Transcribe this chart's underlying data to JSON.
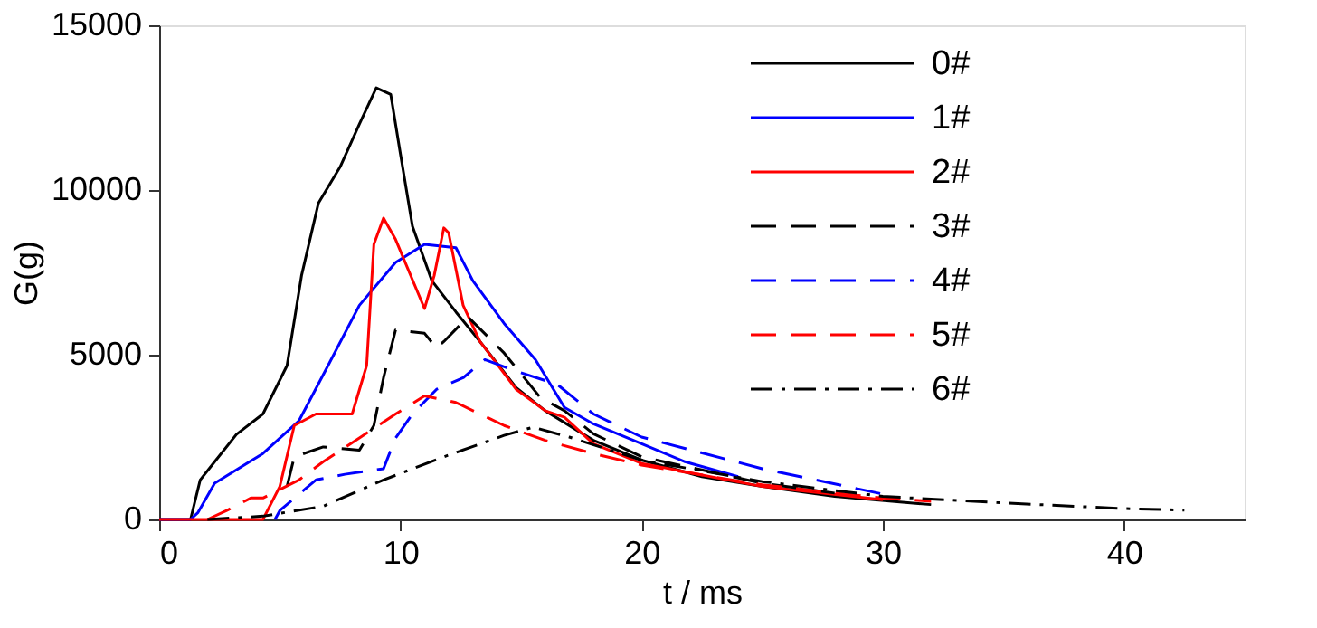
{
  "chart_data": {
    "type": "line",
    "xlabel": "t / ms",
    "ylabel": "G(g)",
    "xlim": [
      0,
      45
    ],
    "ylim": [
      0,
      15000
    ],
    "xticks": [
      0,
      10,
      20,
      30,
      40
    ],
    "yticks": [
      0,
      5000,
      10000,
      15000
    ],
    "grid": false,
    "legend": "top right",
    "series": [
      {
        "name": "0#",
        "color": "#000000",
        "line_style": "solid",
        "x": [
          0,
          1.3,
          1.7,
          2.3,
          3.2,
          4.3,
          5.3,
          5.9,
          6.6,
          7.5,
          8.3,
          9.0,
          9.6,
          10.0,
          10.5,
          11.3,
          12.3,
          13.3,
          14.8,
          16,
          18,
          20,
          22.5,
          25,
          28,
          32
        ],
        "values": [
          0,
          0,
          1200,
          1750,
          2580,
          3200,
          4670,
          7400,
          9600,
          10700,
          12000,
          13100,
          12900,
          11100,
          8900,
          7250,
          6300,
          5400,
          4000,
          3300,
          2400,
          1800,
          1300,
          1000,
          700,
          450
        ]
      },
      {
        "name": "1#",
        "color": "#0000ff",
        "line_style": "solid",
        "x": [
          0,
          1.3,
          1.6,
          2.3,
          4.3,
          5.8,
          7.0,
          8.3,
          9.8,
          11,
          12.3,
          13,
          14.3,
          15.6,
          16.8,
          18,
          20,
          21.8,
          24
        ],
        "values": [
          0,
          0,
          200,
          1100,
          2000,
          3000,
          4670,
          6500,
          7800,
          8350,
          8250,
          7250,
          5950,
          4850,
          3400,
          2900,
          2300,
          1750,
          1300
        ]
      },
      {
        "name": "2#",
        "color": "#ff0000",
        "line_style": "solid",
        "x": [
          0,
          4.3,
          5.0,
          5.6,
          6.5,
          8.0,
          8.6,
          8.9,
          9.3,
          9.8,
          11.0,
          11.4,
          11.8,
          12.0,
          12.6,
          13.3,
          14.8,
          16.0,
          16.8,
          18,
          20,
          25,
          30
        ],
        "values": [
          0,
          0,
          1000,
          2850,
          3200,
          3200,
          4670,
          8350,
          9150,
          8500,
          6400,
          7400,
          8850,
          8700,
          6500,
          5400,
          3950,
          3300,
          3100,
          2300,
          1700,
          1000,
          600
        ]
      },
      {
        "name": "3#",
        "color": "#000000",
        "line_style": "dashed",
        "x": [
          5.3,
          5.6,
          6.8,
          8.3,
          8.9,
          9.3,
          9.8,
          11,
          11.5,
          11.8,
          12.8,
          14.3,
          15.8,
          16.8,
          18,
          20,
          25,
          28
        ],
        "values": [
          1000,
          1900,
          2200,
          2100,
          2850,
          4300,
          5750,
          5650,
          5200,
          5400,
          6150,
          5050,
          3700,
          3300,
          2600,
          1900,
          1100,
          800
        ]
      },
      {
        "name": "4#",
        "color": "#0000ff",
        "line_style": "dashed",
        "x": [
          4.8,
          5.0,
          6.5,
          7.7,
          9.3,
          9.8,
          10.5,
          11.5,
          12.6,
          13.5,
          14.8,
          16.5,
          18,
          20,
          25,
          30
        ],
        "values": [
          0,
          270,
          1200,
          1370,
          1540,
          2470,
          3200,
          3950,
          4300,
          4850,
          4500,
          4100,
          3200,
          2500,
          1540,
          770
        ]
      },
      {
        "name": "5#",
        "color": "#ff0000",
        "line_style": "dashed",
        "x": [
          2.0,
          2.8,
          3.8,
          4.3,
          5.8,
          6.8,
          8.3,
          9.8,
          11,
          12.3,
          14.3,
          16,
          18,
          20,
          25,
          30,
          32
        ],
        "values": [
          0,
          270,
          650,
          650,
          1200,
          1750,
          2470,
          3200,
          3750,
          3550,
          2850,
          2400,
          2000,
          1650,
          1050,
          650,
          550
        ]
      },
      {
        "name": "6#",
        "color": "#000000",
        "line_style": "dashdot",
        "x": [
          2.0,
          4.3,
          6.8,
          9.3,
          11.8,
          14.3,
          15.5,
          17,
          20,
          25,
          30,
          35,
          40,
          42.5
        ],
        "values": [
          0,
          100,
          400,
          1200,
          1900,
          2550,
          2800,
          2500,
          1800,
          1150,
          700,
          500,
          330,
          280
        ]
      }
    ]
  }
}
